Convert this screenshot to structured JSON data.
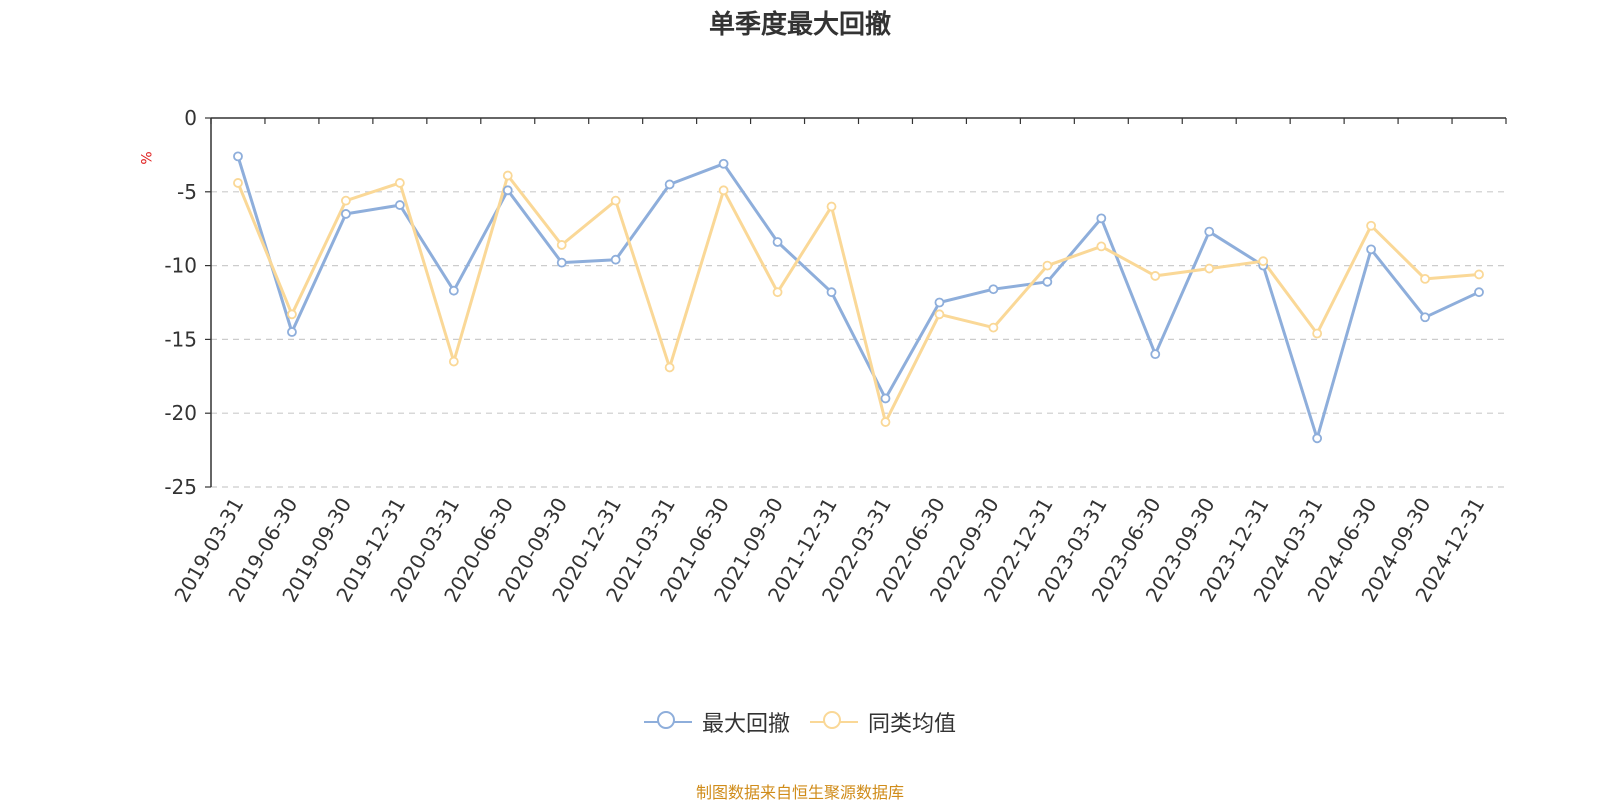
{
  "chart_data": {
    "type": "line",
    "title": "单季度最大回撤",
    "ylabel": "%",
    "ylim": [
      -25,
      0
    ],
    "yticks": [
      0,
      -5,
      -10,
      -15,
      -20,
      -25
    ],
    "grid": true,
    "legend_position": "bottom",
    "categories": [
      "2019-03-31",
      "2019-06-30",
      "2019-09-30",
      "2019-12-31",
      "2020-03-31",
      "2020-06-30",
      "2020-09-30",
      "2020-12-31",
      "2021-03-31",
      "2021-06-30",
      "2021-09-30",
      "2021-12-31",
      "2022-03-31",
      "2022-06-30",
      "2022-09-30",
      "2022-12-31",
      "2023-03-31",
      "2023-06-30",
      "2023-09-30",
      "2023-12-31",
      "2024-03-31",
      "2024-06-30",
      "2024-09-30",
      "2024-12-31"
    ],
    "series": [
      {
        "name": "最大回撤",
        "color": "#8eaedb",
        "values": [
          -2.6,
          -14.5,
          -6.5,
          -5.9,
          -11.7,
          -4.9,
          -9.8,
          -9.6,
          -4.5,
          -3.1,
          -8.4,
          -11.8,
          -19.0,
          -12.5,
          -11.6,
          -11.1,
          -6.8,
          -16.0,
          -7.7,
          -10.0,
          -21.7,
          -8.9,
          -13.5,
          -11.8
        ]
      },
      {
        "name": "同类均值",
        "color": "#fad897",
        "values": [
          -4.4,
          -13.3,
          -5.6,
          -4.4,
          -16.5,
          -3.9,
          -8.6,
          -5.6,
          -16.9,
          -4.9,
          -11.8,
          -6.0,
          -20.6,
          -13.3,
          -14.2,
          -10.0,
          -8.7,
          -10.7,
          -10.2,
          -9.7,
          -14.6,
          -7.3,
          -10.9,
          -10.6
        ]
      }
    ]
  },
  "source_note": "制图数据来自恒生聚源数据库"
}
